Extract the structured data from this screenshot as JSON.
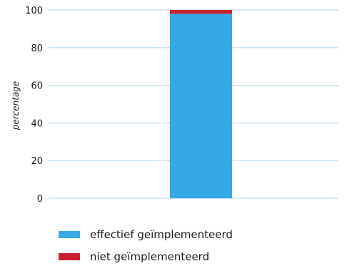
{
  "chart_data": {
    "type": "bar",
    "stacked": true,
    "categories": [
      ""
    ],
    "series": [
      {
        "name": "effectief geïmplementeerd",
        "values": [
          98
        ],
        "color": "#35a8e6"
      },
      {
        "name": "niet geïmplementeerd",
        "values": [
          2
        ],
        "color": "#c8202f"
      }
    ],
    "ylabel": "percentage",
    "ylim": [
      0,
      100
    ],
    "yticks": [
      0,
      20,
      40,
      60,
      80,
      100
    ],
    "grid": true,
    "gridline_color": "#b9daf2",
    "legend_position": "bottom-left"
  }
}
